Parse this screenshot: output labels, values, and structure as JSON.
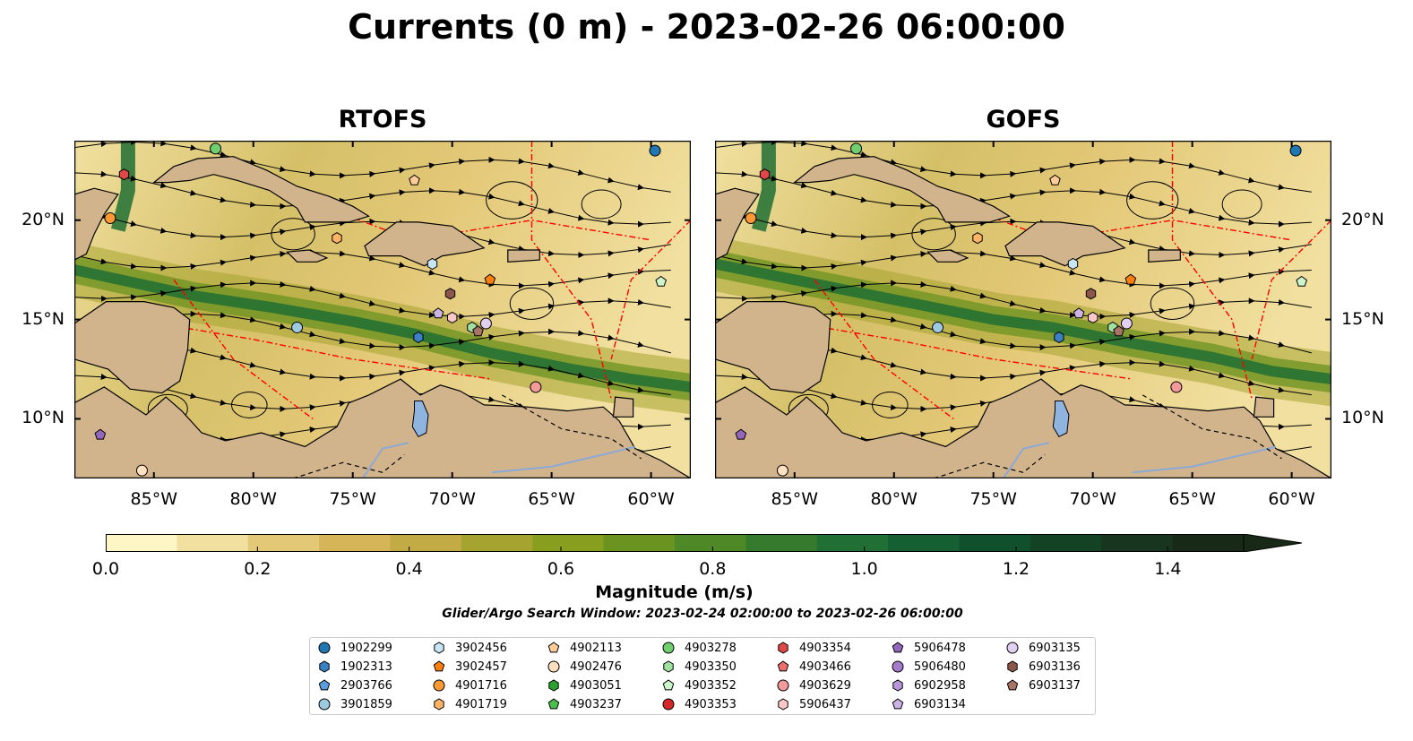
{
  "title": "Currents (0 m) - 2023-02-26 06:00:00",
  "panels": [
    {
      "title": "RTOFS"
    },
    {
      "title": "GOFS"
    }
  ],
  "axes": {
    "lon_ticks": [
      "85°W",
      "80°W",
      "75°W",
      "70°W",
      "65°W",
      "60°W"
    ],
    "lon_values": [
      -85,
      -80,
      -75,
      -70,
      -65,
      -60
    ],
    "lat_ticks": [
      "20°N",
      "15°N",
      "10°N"
    ],
    "lat_values": [
      20,
      15,
      10
    ],
    "lon_range": [
      -89,
      -58
    ],
    "lat_range": [
      7,
      24
    ]
  },
  "colorbar": {
    "label": "Magnitude (m/s)",
    "ticks": [
      "0.0",
      "0.2",
      "0.4",
      "0.6",
      "0.8",
      "1.0",
      "1.2",
      "1.4"
    ],
    "tick_values": [
      0.0,
      0.2,
      0.4,
      0.6,
      0.8,
      1.0,
      1.2,
      1.4
    ],
    "range": [
      0,
      1.5
    ],
    "extend": "max",
    "colors": [
      "#fef6c4",
      "#f1e0a0",
      "#e3c877",
      "#d5b558",
      "#c2ab44",
      "#a6a430",
      "#889e1f",
      "#6b9320",
      "#4f8827",
      "#357a2d",
      "#216f34",
      "#155f33",
      "#10502c",
      "#144225",
      "#18351f",
      "#182a17"
    ]
  },
  "search_window": "Glider/Argo Search Window: 2023-02-24 02:00:00 to 2023-02-26 06:00:00",
  "legend": [
    {
      "id": "1902299",
      "shape": "circle",
      "color": "#1f77b4"
    },
    {
      "id": "1902313",
      "shape": "hexagon",
      "color": "#3a80c4"
    },
    {
      "id": "2903766",
      "shape": "pentagon",
      "color": "#5a9ee0"
    },
    {
      "id": "3901859",
      "shape": "circle",
      "color": "#9ecae1"
    },
    {
      "id": "3902456",
      "shape": "hexagon",
      "color": "#c6e5f5"
    },
    {
      "id": "3902457",
      "shape": "pentagon",
      "color": "#ff7f0e"
    },
    {
      "id": "4901716",
      "shape": "circle",
      "color": "#ff9933"
    },
    {
      "id": "4901719",
      "shape": "hexagon",
      "color": "#ffb366"
    },
    {
      "id": "4902113",
      "shape": "pentagon",
      "color": "#ffcc99"
    },
    {
      "id": "4902476",
      "shape": "circle",
      "color": "#ffe0c0"
    },
    {
      "id": "4903051",
      "shape": "hexagon",
      "color": "#2ca02c"
    },
    {
      "id": "4903237",
      "shape": "pentagon",
      "color": "#4cbf4c"
    },
    {
      "id": "4903278",
      "shape": "circle",
      "color": "#6fcf6f"
    },
    {
      "id": "4903350",
      "shape": "hexagon",
      "color": "#a0e0a0"
    },
    {
      "id": "4903352",
      "shape": "pentagon",
      "color": "#ccf5cc"
    },
    {
      "id": "4903353",
      "shape": "circle",
      "color": "#d62728"
    },
    {
      "id": "4903354",
      "shape": "hexagon",
      "color": "#e04848"
    },
    {
      "id": "4903466",
      "shape": "pentagon",
      "color": "#ee6e6e"
    },
    {
      "id": "4903629",
      "shape": "circle",
      "color": "#f49a9a"
    },
    {
      "id": "5906437",
      "shape": "hexagon",
      "color": "#fac8c8"
    },
    {
      "id": "5906478",
      "shape": "pentagon",
      "color": "#9467bd"
    },
    {
      "id": "5906480",
      "shape": "circle",
      "color": "#a57ccb"
    },
    {
      "id": "6902958",
      "shape": "hexagon",
      "color": "#b897d8"
    },
    {
      "id": "6903134",
      "shape": "pentagon",
      "color": "#cbb3e6"
    },
    {
      "id": "6903135",
      "shape": "circle",
      "color": "#e2d0f3"
    },
    {
      "id": "6903136",
      "shape": "hexagon",
      "color": "#8c564b"
    },
    {
      "id": "6903137",
      "shape": "pentagon",
      "color": "#a87466"
    }
  ],
  "floats": [
    {
      "id": "1902299",
      "lon": -59.8,
      "lat": 23.5
    },
    {
      "id": "1902313",
      "lon": -71.7,
      "lat": 14.1
    },
    {
      "id": "3901859",
      "lon": -77.8,
      "lat": 14.6
    },
    {
      "id": "3902456",
      "lon": -71.0,
      "lat": 17.8
    },
    {
      "id": "3902457",
      "lon": -68.1,
      "lat": 17.0
    },
    {
      "id": "4901716",
      "lon": -87.2,
      "lat": 20.1
    },
    {
      "id": "4901719",
      "lon": -75.8,
      "lat": 19.1
    },
    {
      "id": "4902113",
      "lon": -71.9,
      "lat": 22.0
    },
    {
      "id": "4902476",
      "lon": -85.6,
      "lat": 7.4
    },
    {
      "id": "4903278",
      "lon": -81.9,
      "lat": 23.6
    },
    {
      "id": "4903350",
      "lon": -69.0,
      "lat": 14.6
    },
    {
      "id": "4903352",
      "lon": -59.5,
      "lat": 16.9
    },
    {
      "id": "4903354",
      "lon": -86.5,
      "lat": 22.3
    },
    {
      "id": "4903629",
      "lon": -65.8,
      "lat": 11.6
    },
    {
      "id": "5906437",
      "lon": -70.0,
      "lat": 15.1
    },
    {
      "id": "5906478",
      "lon": -87.7,
      "lat": 9.2
    },
    {
      "id": "6903134",
      "lon": -70.7,
      "lat": 15.3
    },
    {
      "id": "6903135",
      "lon": -68.3,
      "lat": 14.8
    },
    {
      "id": "6903136",
      "lon": -70.1,
      "lat": 16.3
    },
    {
      "id": "6903137",
      "lon": -68.7,
      "lat": 14.4
    }
  ],
  "colors": {
    "land": "#d2b48c",
    "lake": "#8fb4e0",
    "streamline": "#000000",
    "eez": "#ff0000",
    "border": "#000000"
  }
}
